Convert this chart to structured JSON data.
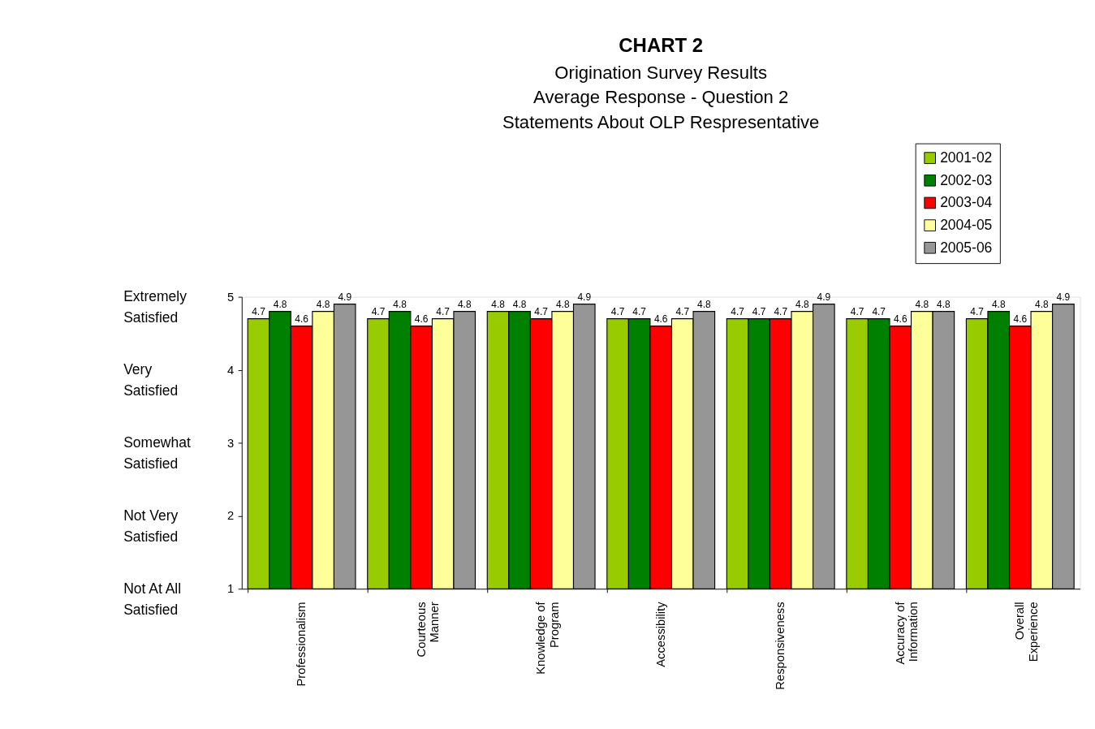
{
  "chart_data": {
    "type": "bar",
    "title": "CHART 2",
    "subtitle": "Origination Survey Results\nAverage Response - Question 2\nStatements About OLP Respresentative",
    "categories": [
      "Professionalism",
      "Courteous Manner",
      "Knowledge of Program",
      "Accessibility",
      "Responsiveness",
      "Accuracy of Information",
      "Overall Experience"
    ],
    "series": [
      {
        "name": "2001-02",
        "color": "#99cc00",
        "values": [
          4.7,
          4.7,
          4.8,
          4.7,
          4.7,
          4.7,
          4.7
        ]
      },
      {
        "name": "2002-03",
        "color": "#008000",
        "values": [
          4.8,
          4.8,
          4.8,
          4.7,
          4.7,
          4.7,
          4.8
        ]
      },
      {
        "name": "2003-04",
        "color": "#ff0000",
        "values": [
          4.6,
          4.6,
          4.7,
          4.6,
          4.7,
          4.6,
          4.6
        ]
      },
      {
        "name": "2004-05",
        "color": "#ffff99",
        "values": [
          4.8,
          4.7,
          4.8,
          4.7,
          4.8,
          4.8,
          4.8
        ]
      },
      {
        "name": "2005-06",
        "color": "#969696",
        "values": [
          4.9,
          4.8,
          4.9,
          4.8,
          4.9,
          4.8,
          4.9
        ]
      }
    ],
    "ylim": [
      1,
      5
    ],
    "yticks": [
      1,
      2,
      3,
      4,
      5
    ],
    "grid": false,
    "legend": "top right",
    "data_labels": true,
    "annotations": [
      "Extremely Satisfied",
      "Very Satisfied",
      "Somewhat Satisfied",
      "Not Very Satisfied",
      "Not At All Satisfied"
    ]
  }
}
